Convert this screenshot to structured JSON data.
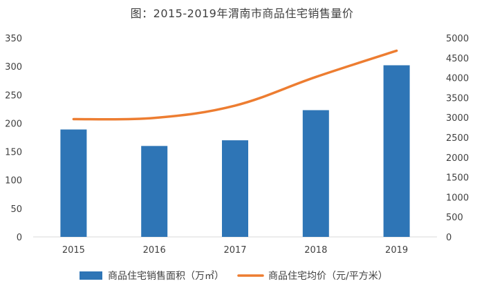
{
  "chart_data": {
    "type": "bar+line",
    "title": "图：2015-2019年渭南市商品住宅销售量价",
    "categories": [
      "2015",
      "2016",
      "2017",
      "2018",
      "2019"
    ],
    "series": [
      {
        "name": "商品住宅销售面积（万㎡）",
        "type": "bar",
        "axis": "left",
        "values": [
          189,
          160,
          170,
          223,
          302
        ],
        "color": "#2E75B6"
      },
      {
        "name": "商品住宅均价（元/平方米）",
        "type": "line",
        "axis": "right",
        "values": [
          2960,
          2990,
          3300,
          4020,
          4680
        ],
        "color": "#ED7D31"
      }
    ],
    "y_left": {
      "min": 0,
      "max": 350,
      "ticks": [
        0,
        50,
        100,
        150,
        200,
        250,
        300,
        350
      ]
    },
    "y_right": {
      "min": 0,
      "max": 5000,
      "ticks": [
        0,
        500,
        1000,
        1500,
        2000,
        2500,
        3000,
        3500,
        4000,
        4500,
        5000
      ]
    },
    "grid": false,
    "legend_position": "bottom"
  }
}
